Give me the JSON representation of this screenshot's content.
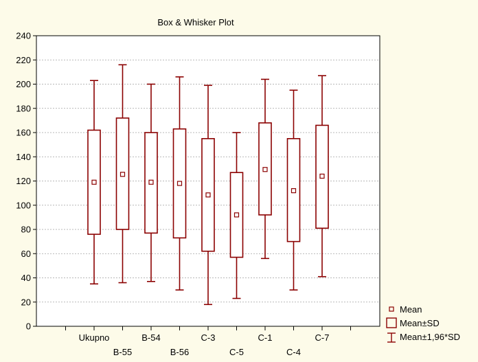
{
  "chart_data": {
    "type": "box",
    "title": "Box & Whisker Plot",
    "xlabel": "",
    "ylabel": "",
    "ylim": [
      0,
      240
    ],
    "yticks": [
      0,
      20,
      40,
      60,
      80,
      100,
      120,
      140,
      160,
      180,
      200,
      220,
      240
    ],
    "grid": true,
    "legend_position": "bottom-right",
    "categories": [
      "Ukupno",
      "B-55",
      "B-54",
      "B-56",
      "C-3",
      "C-5",
      "C-1",
      "C-4",
      "C-7"
    ],
    "label_rows": [
      "top",
      "bottom",
      "top",
      "bottom",
      "top",
      "bottom",
      "top",
      "bottom",
      "top"
    ],
    "boxes": [
      {
        "mean": 119,
        "box_low": 76,
        "box_high": 162,
        "whisker_low": 35,
        "whisker_high": 203
      },
      {
        "mean": 125.5,
        "box_low": 80,
        "box_high": 172,
        "whisker_low": 36,
        "whisker_high": 216
      },
      {
        "mean": 119,
        "box_low": 77,
        "box_high": 160,
        "whisker_low": 37,
        "whisker_high": 200
      },
      {
        "mean": 118,
        "box_low": 73,
        "box_high": 163,
        "whisker_low": 30,
        "whisker_high": 206
      },
      {
        "mean": 108.5,
        "box_low": 62,
        "box_high": 155,
        "whisker_low": 18,
        "whisker_high": 199
      },
      {
        "mean": 92,
        "box_low": 57,
        "box_high": 127,
        "whisker_low": 23,
        "whisker_high": 160
      },
      {
        "mean": 129.5,
        "box_low": 92,
        "box_high": 168,
        "whisker_low": 56,
        "whisker_high": 204
      },
      {
        "mean": 112,
        "box_low": 70,
        "box_high": 155,
        "whisker_low": 30,
        "whisker_high": 195
      },
      {
        "mean": 124,
        "box_low": 81,
        "box_high": 166,
        "whisker_low": 41,
        "whisker_high": 207
      }
    ],
    "legend": [
      "Mean",
      "Mean±SD",
      "Mean±1,96*SD"
    ],
    "colors": {
      "box": "#8b0000",
      "grid": "#a0a0a0",
      "background": "#fdfbe9",
      "plot_background": "#ffffff"
    }
  }
}
